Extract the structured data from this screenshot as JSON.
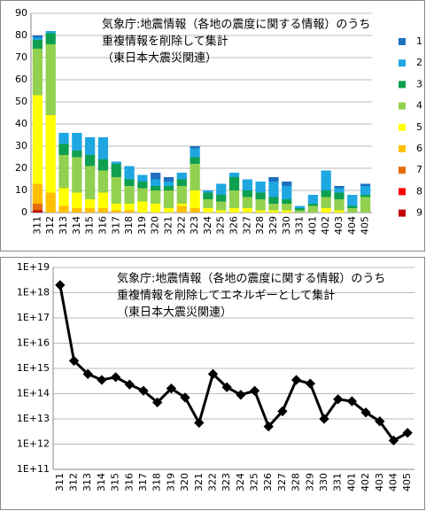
{
  "chart_data": [
    {
      "type": "bar",
      "stacked": true,
      "title_lines": [
        "気象庁:地震情報（各地の震度に関する情報）のうち",
        "重複情報を削除して集計",
        "（東日本大震災関連）"
      ],
      "categories": [
        "311",
        "312",
        "313",
        "314",
        "315",
        "316",
        "317",
        "318",
        "319",
        "320",
        "321",
        "322",
        "323",
        "324",
        "325",
        "326",
        "327",
        "328",
        "329",
        "330",
        "331",
        "401",
        "402",
        "403",
        "404",
        "405"
      ],
      "series": [
        {
          "name": "1",
          "color": "#1f6fbf",
          "values": [
            1,
            0,
            0,
            0,
            0,
            0,
            0,
            0,
            0,
            3,
            2,
            0,
            1,
            0,
            0,
            0,
            0,
            0,
            2,
            2,
            0,
            0,
            0,
            1,
            0,
            1
          ]
        },
        {
          "name": "2",
          "color": "#1ea7e1",
          "values": [
            1,
            1,
            5,
            8,
            8,
            10,
            1,
            6,
            3,
            3,
            2,
            3,
            4,
            1,
            5,
            2,
            5,
            5,
            7,
            6,
            1,
            4,
            9,
            2,
            5,
            4
          ]
        },
        {
          "name": "3",
          "color": "#0ea050",
          "values": [
            4,
            5,
            5,
            3,
            5,
            5,
            6,
            3,
            3,
            2,
            2,
            3,
            3,
            3,
            3,
            6,
            3,
            3,
            3,
            2,
            1,
            1,
            3,
            3,
            1,
            1
          ]
        },
        {
          "name": "4",
          "color": "#92d050",
          "values": [
            21,
            32,
            15,
            16,
            15,
            10,
            12,
            8,
            6,
            6,
            8,
            8,
            12,
            4,
            4,
            8,
            5,
            5,
            3,
            3,
            1,
            3,
            5,
            5,
            2,
            7
          ]
        },
        {
          "name": "5",
          "color": "#ffff00",
          "values": [
            40,
            35,
            8,
            7,
            4,
            7,
            3,
            3,
            5,
            4,
            2,
            1,
            8,
            2,
            1,
            2,
            2,
            1,
            1,
            1,
            0,
            0,
            2,
            1,
            0,
            0
          ]
        },
        {
          "name": "6",
          "color": "#ffc000",
          "values": [
            9,
            9,
            3,
            2,
            2,
            2,
            1,
            1,
            0,
            0,
            0,
            3,
            2,
            0,
            0,
            0,
            0,
            0,
            0,
            0,
            0,
            0,
            0,
            0,
            0,
            0
          ]
        },
        {
          "name": "7",
          "color": "#e46c0a",
          "values": [
            3,
            0,
            0,
            0,
            0,
            0,
            0,
            0,
            0,
            0,
            0,
            0,
            0,
            0,
            0,
            0,
            0,
            0,
            0,
            0,
            0,
            0,
            0,
            0,
            0,
            0
          ]
        },
        {
          "name": "8",
          "color": "#ff0000",
          "values": [
            0,
            0,
            0,
            0,
            0,
            0,
            0,
            0,
            0,
            0,
            0,
            0,
            0,
            0,
            0,
            0,
            0,
            0,
            0,
            0,
            0,
            0,
            0,
            0,
            0,
            0
          ]
        },
        {
          "name": "9",
          "color": "#c00000",
          "values": [
            1,
            0,
            0,
            0,
            0,
            0,
            0,
            0,
            0,
            0,
            0,
            0,
            0,
            0,
            0,
            0,
            0,
            0,
            0,
            0,
            0,
            0,
            0,
            0,
            0,
            0
          ]
        }
      ],
      "ylim": [
        0,
        90
      ],
      "yticks": [
        0,
        10,
        20,
        30,
        40,
        50,
        60,
        70,
        80,
        90
      ],
      "grid": true,
      "legend": "right"
    },
    {
      "type": "line",
      "log_scale": true,
      "title_lines": [
        "気象庁:地震情報（各地の震度に関する情報）のうち",
        "重複情報を削除してエネルギーとして集計",
        "（東日本大震災関連）"
      ],
      "categories": [
        "311",
        "312",
        "313",
        "314",
        "315",
        "316",
        "317",
        "318",
        "319",
        "320",
        "321",
        "322",
        "323",
        "324",
        "325",
        "326",
        "327",
        "328",
        "329",
        "330",
        "331",
        "401",
        "402",
        "403",
        "404",
        "405"
      ],
      "color": "#000000",
      "values": [
        2e+18,
        2000000000000000.0,
        600000000000000.0,
        350000000000000.0,
        450000000000000.0,
        230000000000000.0,
        130000000000000.0,
        45000000000000.0,
        160000000000000.0,
        70000000000000.0,
        7000000000000.0,
        600000000000000.0,
        180000000000000.0,
        90000000000000.0,
        130000000000000.0,
        5000000000000.0,
        20000000000000.0,
        350000000000000.0,
        250000000000000.0,
        10000000000000.0,
        60000000000000.0,
        50000000000000.0,
        18000000000000.0,
        8000000000000.0,
        1400000000000.0,
        2800000000000.0
      ],
      "ylim": [
        100000000000.0,
        1e+19
      ],
      "yticks": [
        {
          "value": 100000000000.0,
          "label": "1E+11"
        },
        {
          "value": 1000000000000.0,
          "label": "1E+12"
        },
        {
          "value": 10000000000000.0,
          "label": "1E+13"
        },
        {
          "value": 100000000000000.0,
          "label": "1E+14"
        },
        {
          "value": 1000000000000000.0,
          "label": "1E+15"
        },
        {
          "value": 1e+16,
          "label": "1E+16"
        },
        {
          "value": 1e+17,
          "label": "1E+17"
        },
        {
          "value": 1e+18,
          "label": "1E+18"
        },
        {
          "value": 1e+19,
          "label": "1E+19"
        }
      ],
      "grid": true
    }
  ]
}
